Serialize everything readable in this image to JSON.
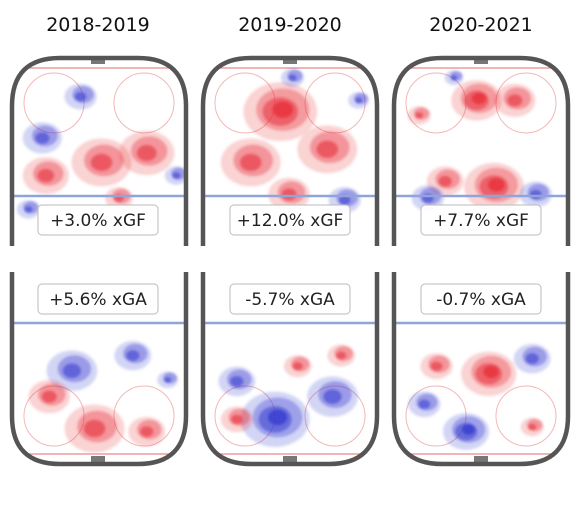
{
  "chart_data": {
    "type": "heatmap",
    "subtype": "hockey rink shot-rate differential maps",
    "colors": {
      "positive": "#e8323c",
      "negative": "#3b3fd0",
      "rink_line_red": "#e58a8a",
      "rink_line_blue": "#8fa4d9",
      "boards": "#555555"
    },
    "panels": [
      {
        "season": "2018-2019",
        "offense_label": "+3.0% xGF",
        "defense_label": "+5.6% xGA",
        "xgf_pct": 3.0,
        "xga_pct": 5.6
      },
      {
        "season": "2019-2020",
        "offense_label": "+12.0% xGF",
        "defense_label": "-5.7% xGA",
        "xgf_pct": 12.0,
        "xga_pct": -5.7
      },
      {
        "season": "2020-2021",
        "offense_label": "+7.7% xGF",
        "defense_label": "-0.7% xGA",
        "xgf_pct": 7.7,
        "xga_pct": -0.7
      }
    ]
  }
}
